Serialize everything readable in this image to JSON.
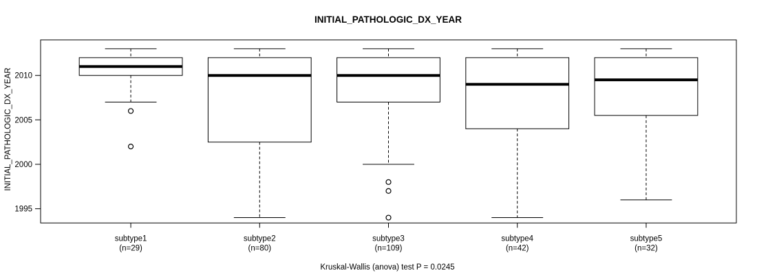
{
  "chart_data": {
    "type": "boxplot",
    "title": "INITIAL_PATHOLOGIC_DX_YEAR",
    "ylabel": "INITIAL_PATHOLOGIC_DX_YEAR",
    "footnote": "Kruskal-Wallis (anova) test P = 0.0245",
    "categories": [
      "subtype1",
      "subtype2",
      "subtype3",
      "subtype4",
      "subtype5"
    ],
    "category_sublabels": [
      "(n=29)",
      "(n=80)",
      "(n=109)",
      "(n=42)",
      "(n=32)"
    ],
    "counts": [
      29,
      80,
      109,
      42,
      32
    ],
    "y_ticks": [
      1995,
      2000,
      2005,
      2010
    ],
    "ylim": [
      1993.4,
      2014.0
    ],
    "grid": false,
    "legend_position": "none",
    "line_color": "#000000",
    "box_fill": "#ffffff",
    "background_color": "#ffffff",
    "series": [
      {
        "name": "subtype1",
        "n": 29,
        "whisker_low": 2007,
        "q1": 2010,
        "median": 2011,
        "q3": 2012,
        "whisker_high": 2013,
        "outliers": [
          2006,
          2002
        ]
      },
      {
        "name": "subtype2",
        "n": 80,
        "whisker_low": 1994,
        "q1": 2002.5,
        "median": 2010,
        "q3": 2012,
        "whisker_high": 2013,
        "outliers": []
      },
      {
        "name": "subtype3",
        "n": 109,
        "whisker_low": 2000,
        "q1": 2007,
        "median": 2010,
        "q3": 2012,
        "whisker_high": 2013,
        "outliers": [
          1998,
          1997,
          1994
        ]
      },
      {
        "name": "subtype4",
        "n": 42,
        "whisker_low": 1994,
        "q1": 2004,
        "median": 2009,
        "q3": 2012,
        "whisker_high": 2013,
        "outliers": []
      },
      {
        "name": "subtype5",
        "n": 32,
        "whisker_low": 1996,
        "q1": 2005.5,
        "median": 2009.5,
        "q3": 2012,
        "whisker_high": 2013,
        "outliers": []
      }
    ]
  }
}
